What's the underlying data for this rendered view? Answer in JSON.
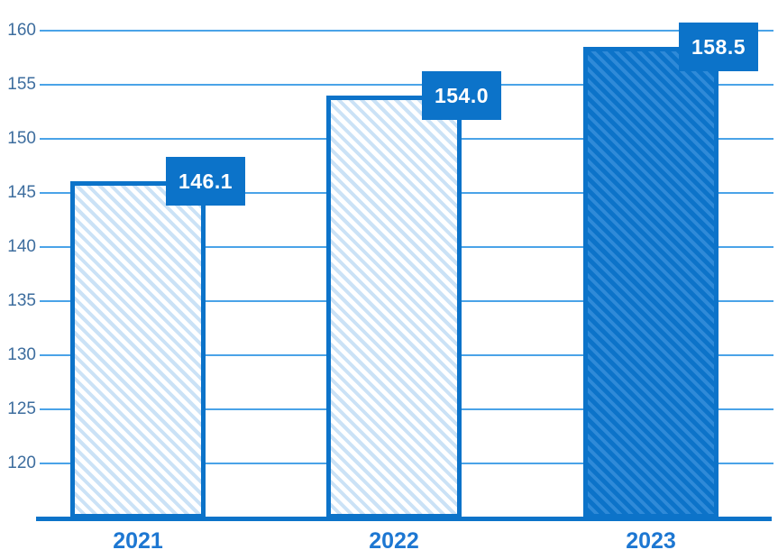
{
  "chart_data": {
    "type": "bar",
    "categories": [
      "2021",
      "2022",
      "2023"
    ],
    "values": [
      146.1,
      154.0,
      158.5
    ],
    "value_labels": [
      "146.1",
      "154.0",
      "158.5"
    ],
    "bar_styles": [
      "hatched-light",
      "hatched-light",
      "solid"
    ],
    "title": "",
    "xlabel": "",
    "ylabel": "",
    "ylim": [
      114.75,
      161.5
    ],
    "yticks": [
      120,
      125,
      130,
      135,
      140,
      145,
      150,
      155,
      160
    ],
    "ytick_labels": [
      "120",
      "125",
      "130",
      "135",
      "140",
      "145",
      "150",
      "155",
      "160"
    ],
    "grid": "horizontal-only",
    "legend": "none",
    "colors": {
      "primary_blue": "#0c73c9",
      "gridline": "#4aa3e8",
      "ytick_label": "#3d6d9e",
      "xtick_label": "#1d77d2",
      "hatch_light_line": "#cbe2f6",
      "hatch_dark_line": "#2f8ad8",
      "value_label_bg": "#0c73c9",
      "value_label_text": "#ffffff"
    }
  }
}
